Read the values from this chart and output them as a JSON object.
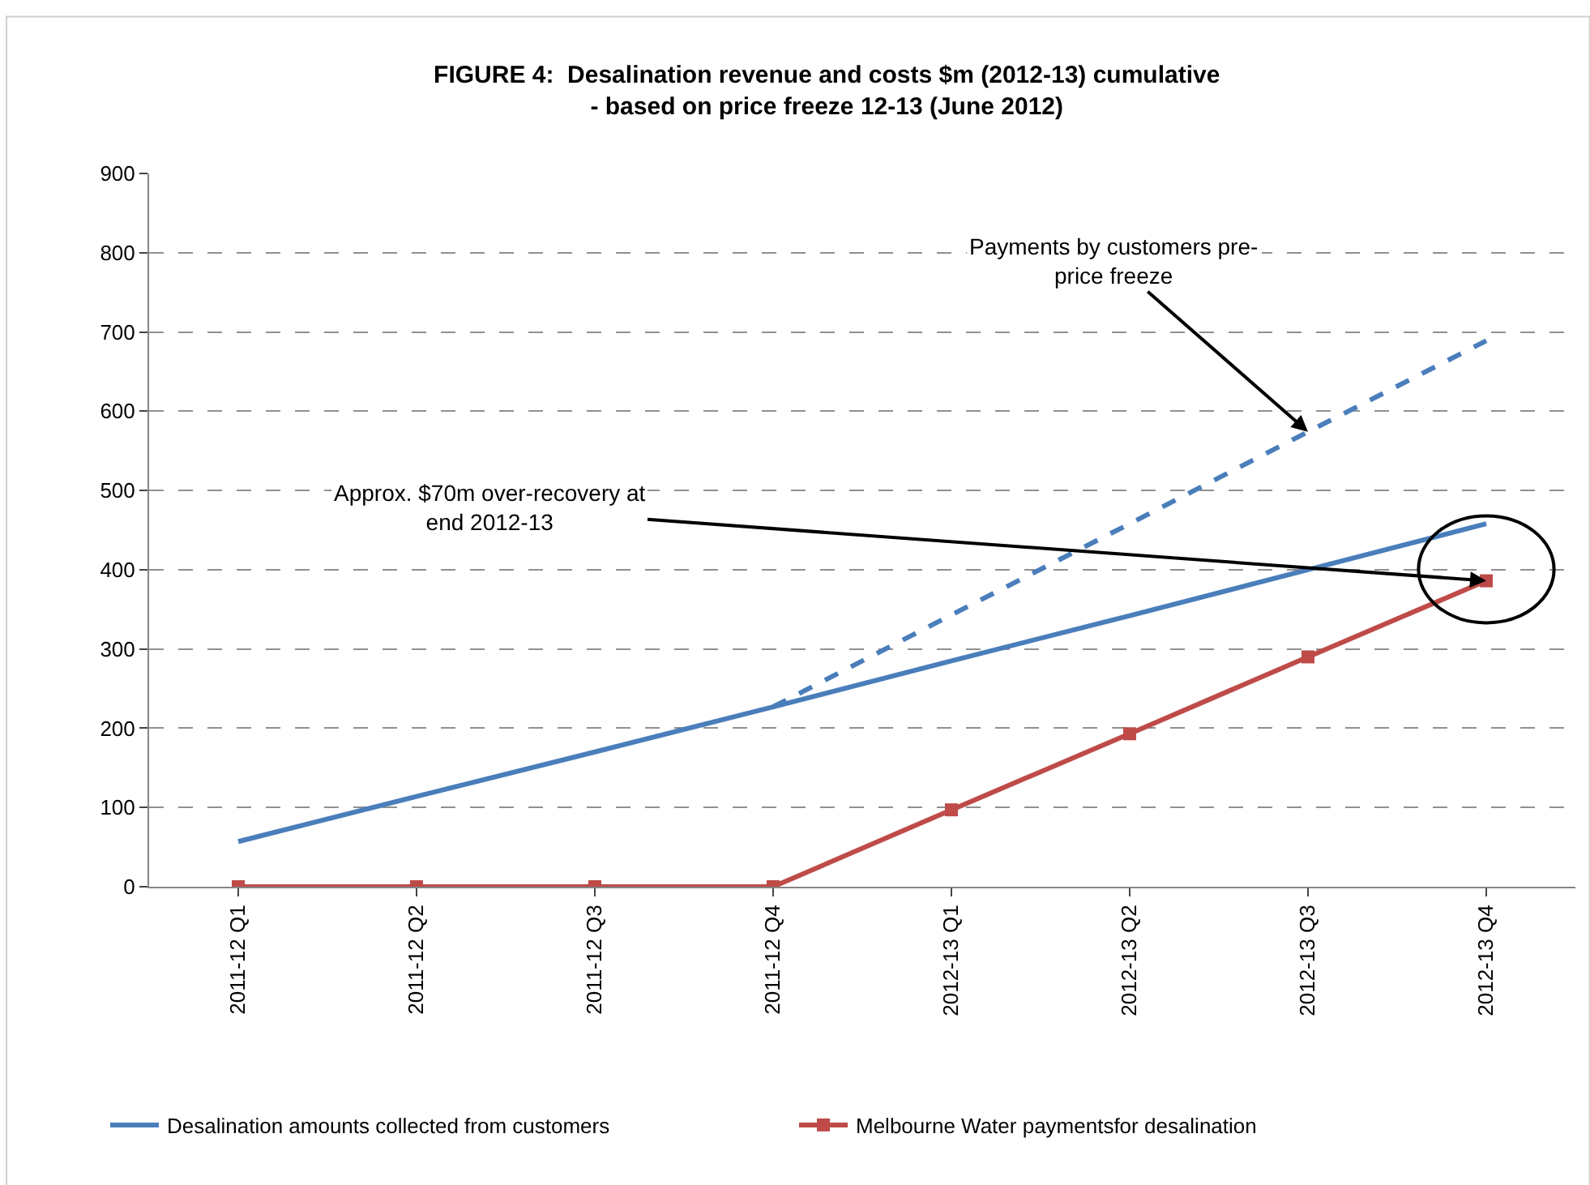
{
  "chart_data": {
    "type": "line",
    "title": "FIGURE 4:  Desalination revenue and costs $m (2012-13) cumulative\n- based on price freeze 12-13 (June 2012)",
    "categories": [
      "2011-12 Q1",
      "2011-12 Q2",
      "2011-12 Q3",
      "2011-12 Q4",
      "2012-13 Q1",
      "2012-13 Q2",
      "2012-13 Q3",
      "2012-13 Q4"
    ],
    "series": [
      {
        "name": "Desalination amounts collected from customers",
        "color": "#4a7ebb",
        "marker": "none",
        "line_style": "solid",
        "values": [
          57,
          114,
          170,
          227,
          285,
          342,
          400,
          458
        ]
      },
      {
        "color": "#4a7ebb",
        "marker": "none",
        "line_style": "dashed",
        "values": [
          null,
          null,
          null,
          227,
          343,
          458,
          574,
          689
        ]
      },
      {
        "name": "Melbourne Water paymentsfor desalination",
        "color": "#be4b48",
        "marker": "square",
        "line_style": "solid",
        "values": [
          0,
          0,
          0,
          0,
          97,
          193,
          290,
          386
        ]
      }
    ],
    "ylim": [
      0,
      900
    ],
    "yticks": [
      0,
      100,
      200,
      300,
      400,
      500,
      600,
      700,
      800,
      900
    ],
    "grid": "y",
    "legend": "bottom",
    "annotations": [
      {
        "text": "Payments by customers pre-\nprice freeze",
        "x": "2012-13 Q3",
        "y": 574
      },
      {
        "text": "Approx. $70m over-recovery at\nend 2012-13",
        "x": "2012-13 Q4",
        "y": 386
      }
    ]
  }
}
